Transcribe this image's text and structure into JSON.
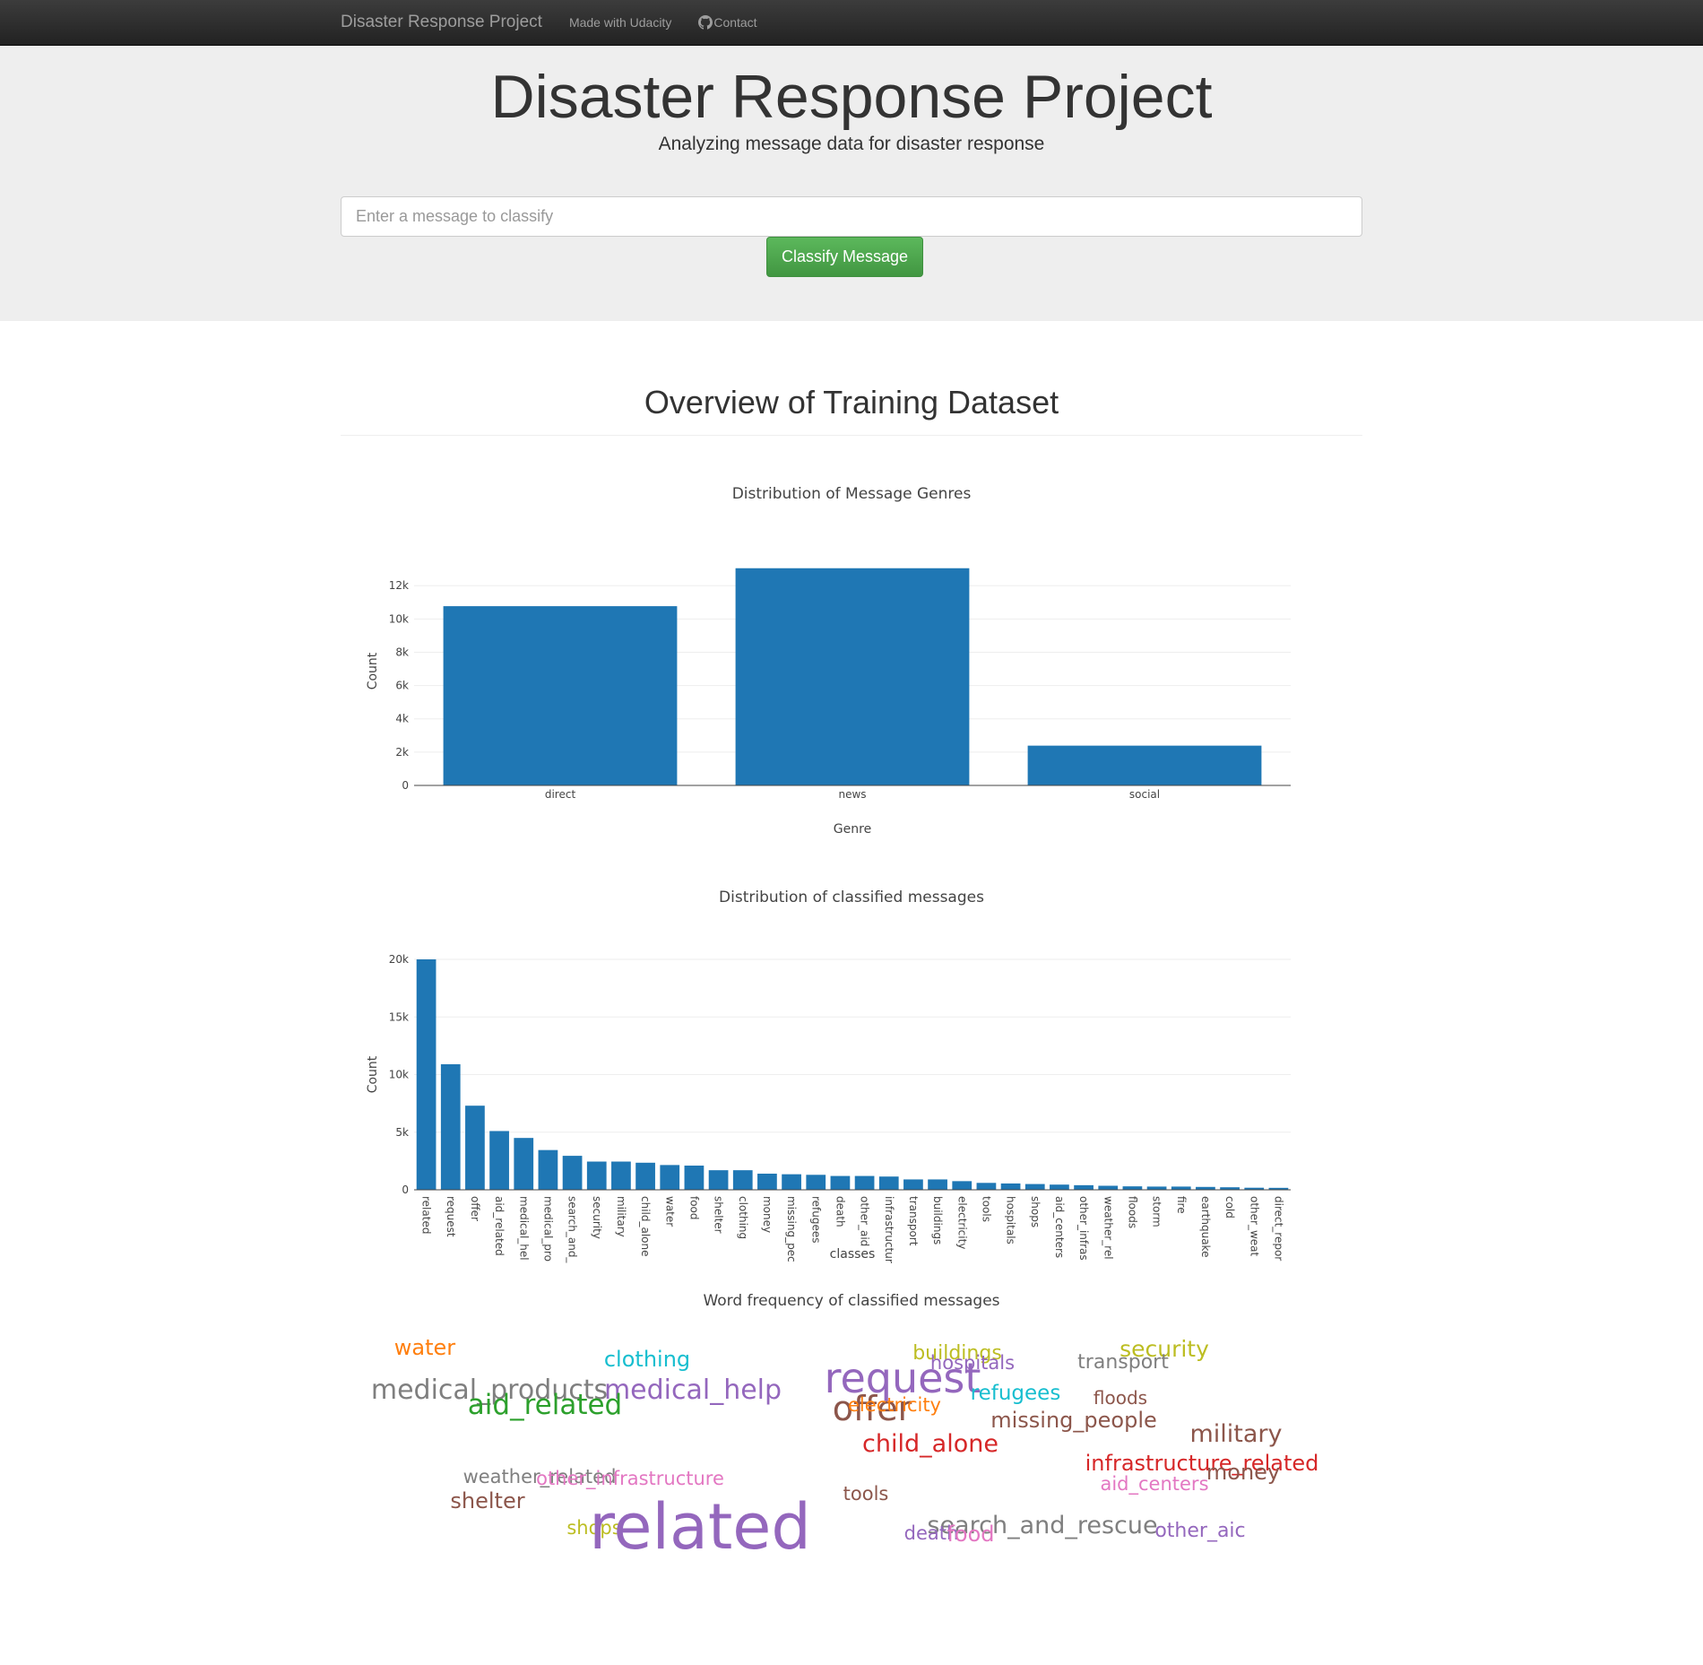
{
  "navbar": {
    "brand": "Disaster Response Project",
    "links": [
      "Made with Udacity",
      "Contact"
    ],
    "contact_icon": "github-icon"
  },
  "hero": {
    "title": "Disaster Response Project",
    "subtitle": "Analyzing message data for disaster response",
    "input_placeholder": "Enter a message to classify",
    "button_label": "Classify Message",
    "button_color": "#5cb85c"
  },
  "section": {
    "title": "Overview of Training Dataset"
  },
  "chart_data": [
    {
      "type": "bar",
      "title": "Distribution of Message Genres",
      "xlabel": "Genre",
      "ylabel": "Count",
      "categories": [
        "direct",
        "news",
        "social"
      ],
      "values": [
        10770,
        13050,
        2390
      ],
      "ylim": [
        0,
        13737
      ],
      "yticks": [
        0,
        2000,
        4000,
        6000,
        8000,
        10000,
        12000
      ],
      "ytick_labels": [
        "0",
        "2k",
        "4k",
        "6k",
        "8k",
        "10k",
        "12k"
      ],
      "color": "#1f77b4",
      "grid": true
    },
    {
      "type": "bar",
      "title": "Distribution of classified messages",
      "xlabel": "classes",
      "ylabel": "Count",
      "categories": [
        "related",
        "request",
        "offer",
        "aid_related",
        "medical_hel",
        "medical_pro",
        "search_and_",
        "security",
        "military",
        "child_alone",
        "water",
        "food",
        "shelter",
        "clothing",
        "money",
        "missing_pec",
        "refugees",
        "death",
        "other_aid",
        "infrastructur",
        "transport",
        "buildings",
        "electricity",
        "tools",
        "hospitals",
        "shops",
        "aid_centers",
        "other_infras",
        "weather_rel",
        "floods",
        "storm",
        "fire",
        "earthquake",
        "cold",
        "other_weat",
        "direct_repor"
      ],
      "values": [
        20000,
        10900,
        7300,
        5100,
        4500,
        3450,
        2950,
        2450,
        2450,
        2350,
        2150,
        2100,
        1700,
        1700,
        1400,
        1350,
        1300,
        1200,
        1200,
        1150,
        900,
        900,
        750,
        600,
        550,
        500,
        450,
        400,
        350,
        300,
        280,
        280,
        250,
        220,
        180,
        170
      ],
      "ylim": [
        0,
        20000
      ],
      "yticks": [
        0,
        5000,
        10000,
        15000,
        20000
      ],
      "ytick_labels": [
        "0",
        "5k",
        "10k",
        "15k",
        "20k"
      ],
      "color": "#1f77b4",
      "grid": true
    }
  ],
  "wordcloud": {
    "title": "Word frequency of classified messages",
    "words": [
      {
        "text": "water",
        "size": 24,
        "color": "#ff7f0e"
      },
      {
        "text": "clothing",
        "size": 24,
        "color": "#17becf"
      },
      {
        "text": "buildings",
        "size": 22,
        "color": "#bcbd22"
      },
      {
        "text": "hospitals",
        "size": 21,
        "color": "#9467bd"
      },
      {
        "text": "security",
        "size": 25,
        "color": "#bcbd22"
      },
      {
        "text": "transport",
        "size": 22,
        "color": "#7f7f7f"
      },
      {
        "text": "medical_products",
        "size": 30,
        "color": "#7f7f7f"
      },
      {
        "text": "medical_help",
        "size": 30,
        "color": "#9467bd"
      },
      {
        "text": "aid_related",
        "size": 31,
        "color": "#2ca02c"
      },
      {
        "text": "request",
        "size": 46,
        "color": "#9467bd"
      },
      {
        "text": "offer",
        "size": 38,
        "color": "#8c564b"
      },
      {
        "text": "electricity",
        "size": 21,
        "color": "#ff7f0e"
      },
      {
        "text": "refugees",
        "size": 23,
        "color": "#17becf"
      },
      {
        "text": "floods",
        "size": 20,
        "color": "#8c564b"
      },
      {
        "text": "missing_people",
        "size": 24,
        "color": "#8c564b"
      },
      {
        "text": "military",
        "size": 27,
        "color": "#8c564b"
      },
      {
        "text": "child_alone",
        "size": 27,
        "color": "#d62728"
      },
      {
        "text": "infrastructure_related",
        "size": 24,
        "color": "#d62728"
      },
      {
        "text": "money",
        "size": 24,
        "color": "#8c564b"
      },
      {
        "text": "aid_centers",
        "size": 21,
        "color": "#e377c2"
      },
      {
        "text": "weather_related",
        "size": 21,
        "color": "#7f7f7f"
      },
      {
        "text": "other_infrastructure",
        "size": 21,
        "color": "#e377c2"
      },
      {
        "text": "shelter",
        "size": 24,
        "color": "#8c564b"
      },
      {
        "text": "tools",
        "size": 21,
        "color": "#8c564b"
      },
      {
        "text": "shops",
        "size": 21,
        "color": "#bcbd22"
      },
      {
        "text": "related",
        "size": 70,
        "color": "#9467bd"
      },
      {
        "text": "search_and_rescue",
        "size": 27,
        "color": "#7f7f7f"
      },
      {
        "text": "death",
        "size": 21,
        "color": "#9467bd"
      },
      {
        "text": "food",
        "size": 24,
        "color": "#e377c2"
      },
      {
        "text": "other_aic",
        "size": 22,
        "color": "#9467bd"
      }
    ]
  }
}
